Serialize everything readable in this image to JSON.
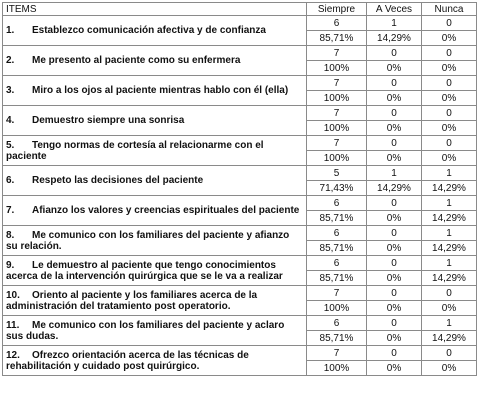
{
  "headers": [
    "ITEMS",
    "Siempre",
    "A Veces",
    "Nunca"
  ],
  "rows": [
    {
      "n": "1.",
      "text": "Establezco comunicación afectiva y de confianza",
      "counts": [
        "6",
        "1",
        "0"
      ],
      "pcts": [
        "85,71%",
        "14,29%",
        "0%"
      ]
    },
    {
      "n": "2.",
      "text": "Me presento al paciente como su enfermera",
      "counts": [
        "7",
        "0",
        "0"
      ],
      "pcts": [
        "100%",
        "0%",
        "0%"
      ]
    },
    {
      "n": "3.",
      "text": "Miro a los ojos al paciente mientras hablo con él (ella)",
      "counts": [
        "7",
        "0",
        "0"
      ],
      "pcts": [
        "100%",
        "0%",
        "0%"
      ]
    },
    {
      "n": "4.",
      "text": "Demuestro siempre una sonrisa",
      "counts": [
        "7",
        "0",
        "0"
      ],
      "pcts": [
        "100%",
        "0%",
        "0%"
      ]
    },
    {
      "n": "5.",
      "text": "Tengo normas de cortesía al relacionarme con el paciente",
      "counts": [
        "7",
        "0",
        "0"
      ],
      "pcts": [
        "100%",
        "0%",
        "0%"
      ]
    },
    {
      "n": "6.",
      "text": "Respeto las decisiones del paciente",
      "counts": [
        "5",
        "1",
        "1"
      ],
      "pcts": [
        "71,43%",
        "14,29%",
        "14,29%"
      ]
    },
    {
      "n": "7.",
      "text": "Afianzo los valores y creencias espirituales del paciente",
      "counts": [
        "6",
        "0",
        "1"
      ],
      "pcts": [
        "85,71%",
        "0%",
        "14,29%"
      ]
    },
    {
      "n": "8.",
      "text": "Me comunico con los familiares del paciente y afianzo su relación.",
      "counts": [
        "6",
        "0",
        "1"
      ],
      "pcts": [
        "85,71%",
        "0%",
        "14,29%"
      ]
    },
    {
      "n": "9.",
      "text": "Le demuestro al paciente que tengo conocimientos acerca de la intervención quirúrgica que se le va a realizar",
      "counts": [
        "6",
        "0",
        "1"
      ],
      "pcts": [
        "85,71%",
        "0%",
        "14,29%"
      ]
    },
    {
      "n": "10.",
      "text": "Oriento al paciente y los familiares acerca de la administración del tratamiento post operatorio.",
      "counts": [
        "7",
        "0",
        "0"
      ],
      "pcts": [
        "100%",
        "0%",
        "0%"
      ]
    },
    {
      "n": "11.",
      "text": "Me comunico con los familiares del paciente y aclaro sus dudas.",
      "counts": [
        "6",
        "0",
        "1"
      ],
      "pcts": [
        "85,71%",
        "0%",
        "14,29%"
      ]
    },
    {
      "n": "12.",
      "text": "Ofrezco orientación acerca de las técnicas de rehabilitación y cuidado post quirúrgico.",
      "counts": [
        "7",
        "0",
        "0"
      ],
      "pcts": [
        "100%",
        "0%",
        "0%"
      ]
    }
  ]
}
